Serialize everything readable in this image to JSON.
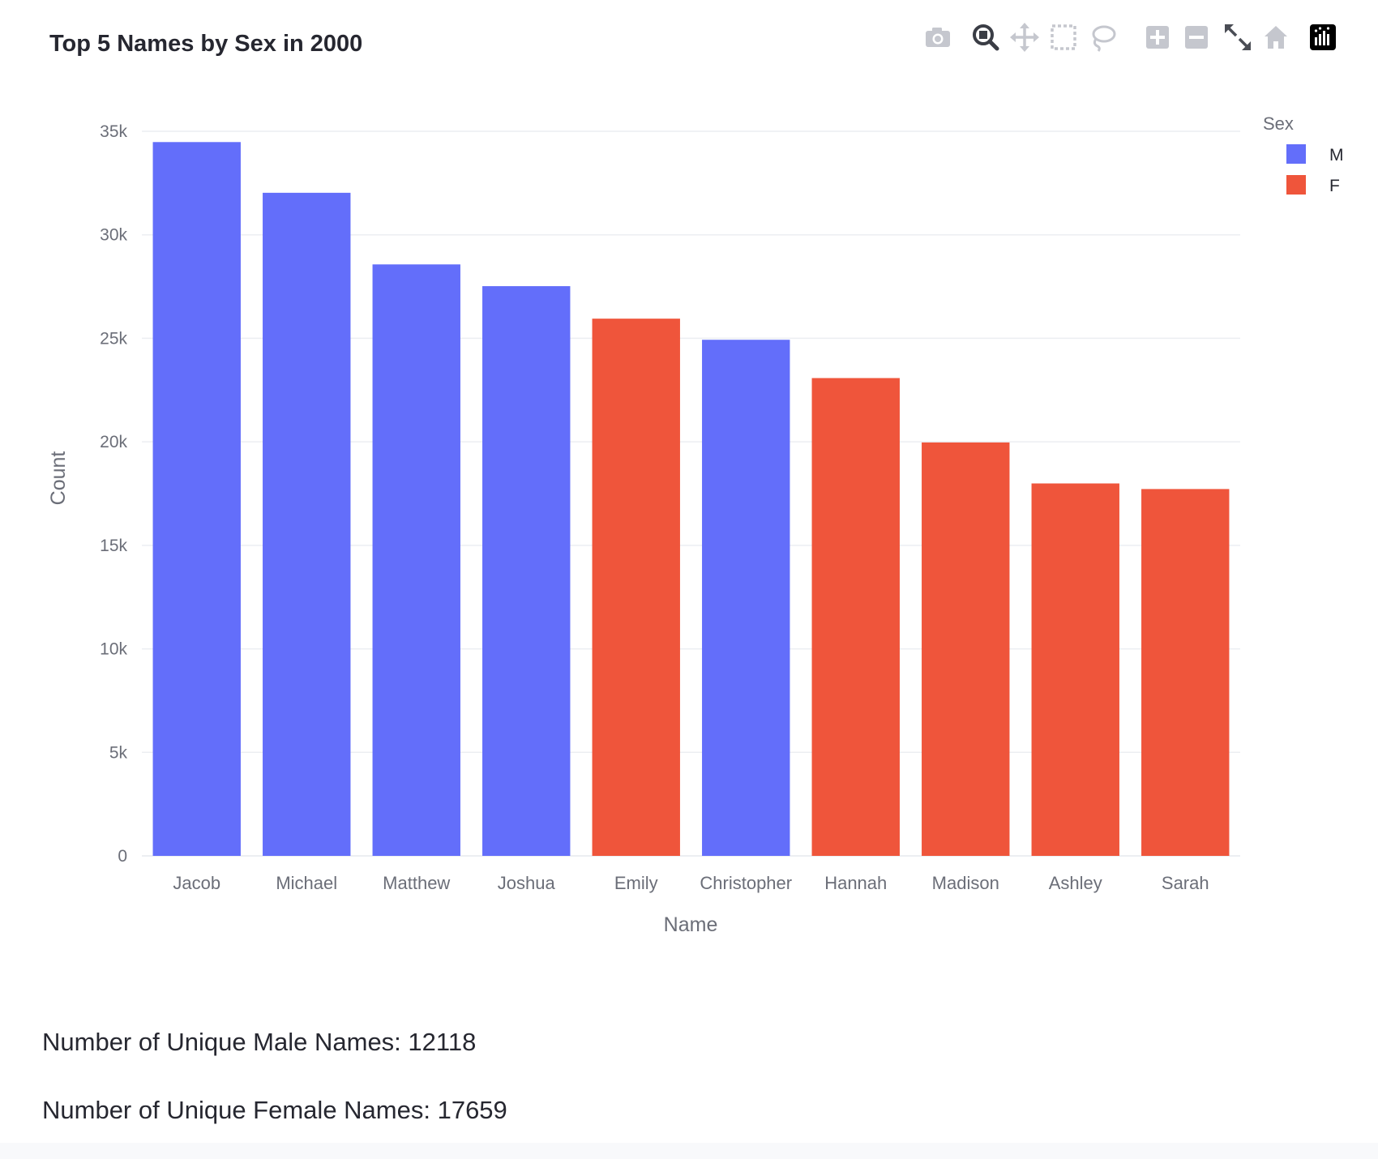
{
  "chart_data": {
    "type": "bar",
    "title": "Top 5 Names by Sex in 2000",
    "xlabel": "Name",
    "ylabel": "Count",
    "ylim": [
      0,
      35000
    ],
    "y_ticks": [
      0,
      5000,
      10000,
      15000,
      20000,
      25000,
      30000,
      35000
    ],
    "y_tick_labels": [
      "0",
      "5k",
      "10k",
      "15k",
      "20k",
      "25k",
      "30k",
      "35k"
    ],
    "grid": true,
    "legend_title": "Sex",
    "legend_position": "top-right",
    "series": [
      {
        "name": "M",
        "color": "#636efa"
      },
      {
        "name": "F",
        "color": "#ef553b"
      }
    ],
    "categories": [
      "Jacob",
      "Michael",
      "Matthew",
      "Joshua",
      "Emily",
      "Christopher",
      "Hannah",
      "Madison",
      "Ashley",
      "Sarah"
    ],
    "values": [
      34480,
      32030,
      28570,
      27520,
      25950,
      24930,
      23080,
      19970,
      17990,
      17720
    ],
    "sex": [
      "M",
      "M",
      "M",
      "M",
      "F",
      "M",
      "F",
      "F",
      "F",
      "F"
    ]
  },
  "modebar": {
    "icons": [
      "camera-icon",
      "zoom-icon",
      "pan-icon",
      "box-select-icon",
      "lasso-icon",
      "zoom-in-icon",
      "zoom-out-icon",
      "autoscale-icon",
      "reset-axes-icon",
      "plotly-logo-icon"
    ]
  },
  "stats": {
    "male_unique": "Number of Unique Male Names: 12118",
    "female_unique": "Number of Unique Female Names: 17659"
  }
}
